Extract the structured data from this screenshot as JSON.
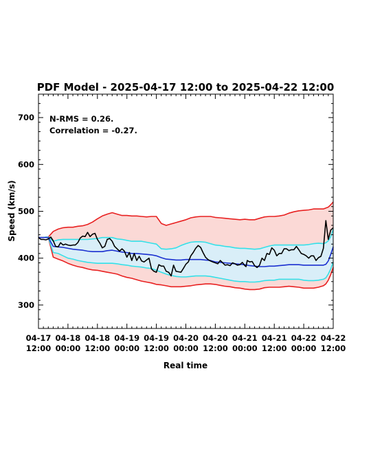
{
  "chart_data": {
    "type": "line",
    "title": "PDF Model - 2025-04-17 12:00 to 2025-04-22 12:00",
    "xlabel": "Real time",
    "ylabel": "Speed (km/s)",
    "xlim": [
      0,
      120
    ],
    "ylim": [
      250,
      750
    ],
    "x_unit": "hours since 2025-04-17 12:00",
    "x_ticks": [
      {
        "x": 0,
        "line1": "04-17",
        "line2": "12:00"
      },
      {
        "x": 12,
        "line1": "04-18",
        "line2": "00:00"
      },
      {
        "x": 24,
        "line1": "04-18",
        "line2": "12:00"
      },
      {
        "x": 36,
        "line1": "04-19",
        "line2": "00:00"
      },
      {
        "x": 48,
        "line1": "04-19",
        "line2": "12:00"
      },
      {
        "x": 60,
        "line1": "04-20",
        "line2": "00:00"
      },
      {
        "x": 72,
        "line1": "04-20",
        "line2": "12:00"
      },
      {
        "x": 84,
        "line1": "04-21",
        "line2": "00:00"
      },
      {
        "x": 96,
        "line1": "04-21",
        "line2": "12:00"
      },
      {
        "x": 108,
        "line1": "04-22",
        "line2": "00:00"
      },
      {
        "x": 120,
        "line1": "04-22",
        "line2": "12:00"
      }
    ],
    "y_ticks": [
      300,
      400,
      500,
      600,
      700
    ],
    "annotations": [
      "N-RMS = 0.26.",
      "Correlation = -0.27."
    ],
    "colors": {
      "observed": "#000000",
      "median": "#1a2fd0",
      "inner_band": "#33e0e8",
      "outer_band": "#e82020",
      "inner_fill": "#d9eef8",
      "outer_fill": "#fbd9d6"
    },
    "series": {
      "outer_upper": {
        "x": [
          0,
          2,
          3,
          4,
          6,
          8,
          10,
          12,
          14,
          16,
          18,
          20,
          22,
          24,
          26,
          28,
          30,
          32,
          34,
          36,
          38,
          40,
          42,
          44,
          46,
          48,
          50,
          52,
          54,
          56,
          58,
          60,
          62,
          64,
          66,
          68,
          70,
          72,
          74,
          76,
          78,
          80,
          82,
          84,
          86,
          88,
          90,
          92,
          94,
          96,
          98,
          100,
          102,
          104,
          106,
          108,
          110,
          112,
          114,
          116,
          117,
          118,
          119,
          120
        ],
        "y": [
          444,
          444,
          445,
          445,
          457,
          462,
          465,
          466,
          466,
          468,
          469,
          472,
          477,
          484,
          490,
          494,
          497,
          494,
          491,
          491,
          490,
          490,
          489,
          488,
          489,
          489,
          474,
          470,
          473,
          476,
          479,
          482,
          486,
          488,
          489,
          489,
          489,
          487,
          486,
          485,
          484,
          483,
          482,
          483,
          482,
          482,
          485,
          488,
          489,
          489,
          490,
          492,
          496,
          499,
          501,
          502,
          503,
          505,
          505,
          505,
          507,
          509,
          514,
          520
        ]
      },
      "inner_upper": {
        "x": [
          0,
          2,
          3,
          4,
          6,
          8,
          10,
          12,
          14,
          16,
          18,
          20,
          22,
          24,
          26,
          28,
          30,
          32,
          34,
          36,
          38,
          40,
          42,
          44,
          46,
          48,
          50,
          52,
          54,
          56,
          58,
          60,
          62,
          64,
          66,
          68,
          70,
          72,
          74,
          76,
          78,
          80,
          82,
          84,
          86,
          88,
          90,
          92,
          94,
          96,
          98,
          100,
          102,
          104,
          106,
          108,
          110,
          112,
          114,
          116,
          117,
          118,
          119,
          120
        ],
        "y": [
          444,
          444,
          445,
          445,
          436,
          439,
          440,
          440,
          440,
          440,
          440,
          440,
          441,
          442,
          444,
          444,
          444,
          441,
          440,
          438,
          436,
          436,
          436,
          434,
          432,
          430,
          420,
          419,
          420,
          422,
          427,
          431,
          434,
          435,
          435,
          434,
          431,
          428,
          427,
          425,
          424,
          422,
          421,
          421,
          420,
          419,
          420,
          423,
          426,
          428,
          428,
          428,
          428,
          428,
          428,
          428,
          429,
          431,
          432,
          431,
          433,
          437,
          446,
          462
        ]
      },
      "median": {
        "x": [
          0,
          2,
          3,
          4,
          6,
          8,
          10,
          12,
          14,
          16,
          18,
          20,
          22,
          24,
          26,
          28,
          30,
          32,
          34,
          36,
          38,
          40,
          42,
          44,
          46,
          48,
          50,
          52,
          54,
          56,
          58,
          60,
          62,
          64,
          66,
          68,
          70,
          72,
          74,
          76,
          78,
          80,
          82,
          84,
          86,
          88,
          90,
          92,
          94,
          96,
          98,
          100,
          102,
          104,
          106,
          108,
          110,
          112,
          114,
          116,
          117,
          118,
          119,
          120
        ],
        "y": [
          444,
          444,
          444,
          444,
          425,
          424,
          423,
          421,
          419,
          418,
          417,
          415,
          414,
          414,
          414,
          416,
          417,
          415,
          413,
          412,
          410,
          410,
          409,
          408,
          407,
          405,
          401,
          398,
          397,
          396,
          396,
          397,
          397,
          397,
          397,
          396,
          395,
          392,
          391,
          390,
          389,
          388,
          387,
          386,
          384,
          383,
          382,
          382,
          383,
          383,
          384,
          385,
          386,
          386,
          386,
          385,
          385,
          385,
          385,
          385,
          387,
          394,
          408,
          424
        ]
      },
      "inner_lower": {
        "x": [
          0,
          2,
          3,
          4,
          6,
          8,
          10,
          12,
          14,
          16,
          18,
          20,
          22,
          24,
          26,
          28,
          30,
          32,
          34,
          36,
          38,
          40,
          42,
          44,
          46,
          48,
          50,
          52,
          54,
          56,
          58,
          60,
          62,
          64,
          66,
          68,
          70,
          72,
          74,
          76,
          78,
          80,
          82,
          84,
          86,
          88,
          90,
          92,
          94,
          96,
          98,
          100,
          102,
          104,
          106,
          108,
          110,
          112,
          114,
          116,
          117,
          118,
          119,
          120
        ],
        "y": [
          444,
          444,
          444,
          444,
          412,
          410,
          405,
          400,
          398,
          395,
          393,
          391,
          390,
          389,
          389,
          389,
          389,
          388,
          386,
          385,
          383,
          382,
          381,
          379,
          378,
          374,
          370,
          366,
          363,
          361,
          360,
          360,
          361,
          362,
          362,
          362,
          361,
          359,
          357,
          355,
          353,
          351,
          350,
          350,
          349,
          349,
          350,
          352,
          353,
          353,
          355,
          355,
          355,
          355,
          355,
          353,
          352,
          352,
          353,
          355,
          358,
          366,
          377,
          392
        ]
      },
      "outer_lower": {
        "x": [
          0,
          2,
          3,
          4,
          6,
          8,
          10,
          12,
          14,
          16,
          18,
          20,
          22,
          24,
          26,
          28,
          30,
          32,
          34,
          36,
          38,
          40,
          42,
          44,
          46,
          48,
          50,
          52,
          54,
          56,
          58,
          60,
          62,
          64,
          66,
          68,
          70,
          72,
          74,
          76,
          78,
          80,
          82,
          84,
          86,
          88,
          90,
          92,
          94,
          96,
          98,
          100,
          102,
          104,
          106,
          108,
          110,
          112,
          114,
          116,
          117,
          118,
          119,
          120
        ],
        "y": [
          444,
          444,
          444,
          444,
          402,
          398,
          394,
          389,
          385,
          382,
          380,
          377,
          375,
          374,
          372,
          370,
          368,
          366,
          362,
          359,
          357,
          354,
          351,
          349,
          347,
          344,
          343,
          341,
          339,
          339,
          339,
          340,
          341,
          343,
          344,
          345,
          345,
          344,
          342,
          340,
          339,
          337,
          336,
          334,
          333,
          333,
          334,
          337,
          338,
          338,
          338,
          339,
          340,
          339,
          338,
          336,
          336,
          336,
          338,
          341,
          345,
          353,
          365,
          380
        ]
      },
      "observed": {
        "x": [
          0,
          1,
          2,
          3,
          4,
          5,
          6,
          7,
          8,
          9,
          10,
          11,
          12,
          13,
          14,
          15,
          16,
          17,
          18,
          19,
          20,
          21,
          22,
          23,
          24,
          25,
          26,
          27,
          28,
          29,
          30,
          31,
          32,
          33,
          34,
          35,
          36,
          37,
          38,
          39,
          40,
          41,
          42,
          43,
          44,
          45,
          46,
          47,
          48,
          49,
          50,
          51,
          52,
          53,
          54,
          55,
          56,
          57,
          58,
          59,
          60,
          61,
          62,
          63,
          64,
          65,
          66,
          67,
          68,
          69,
          70,
          71,
          72,
          73,
          74,
          75,
          76,
          77,
          78,
          79,
          80,
          81,
          82,
          83,
          84,
          84.5,
          85,
          86,
          87,
          88,
          89,
          90,
          91,
          92,
          93,
          94,
          95,
          96,
          97,
          98,
          99,
          100,
          101,
          102,
          103,
          104,
          105,
          106,
          107,
          108,
          109,
          110,
          111,
          112,
          113,
          114,
          115,
          116,
          117,
          118,
          119,
          120
        ],
        "y": [
          444,
          440,
          440,
          439,
          441,
          445,
          437,
          425,
          424,
          433,
          428,
          430,
          428,
          427,
          428,
          428,
          433,
          443,
          447,
          446,
          455,
          446,
          451,
          453,
          440,
          432,
          422,
          425,
          440,
          442,
          436,
          425,
          420,
          415,
          420,
          415,
          402,
          412,
          395,
          410,
          395,
          404,
          394,
          392,
          396,
          400,
          377,
          372,
          370,
          386,
          383,
          383,
          372,
          370,
          362,
          385,
          372,
          371,
          370,
          378,
          387,
          392,
          405,
          412,
          421,
          427,
          423,
          412,
          402,
          397,
          394,
          392,
          390,
          388,
          395,
          390,
          385,
          386,
          384,
          390,
          388,
          385,
          386,
          391,
          384,
          382,
          395,
          392,
          393,
          384,
          380,
          385,
          400,
          395,
          410,
          408,
          422,
          417,
          405,
          410,
          410,
          420,
          420,
          416,
          418,
          418,
          425,
          418,
          410,
          408,
          405,
          400,
          405,
          405,
          395,
          401,
          404,
          421,
          480,
          440,
          460,
          465
        ]
      }
    }
  }
}
